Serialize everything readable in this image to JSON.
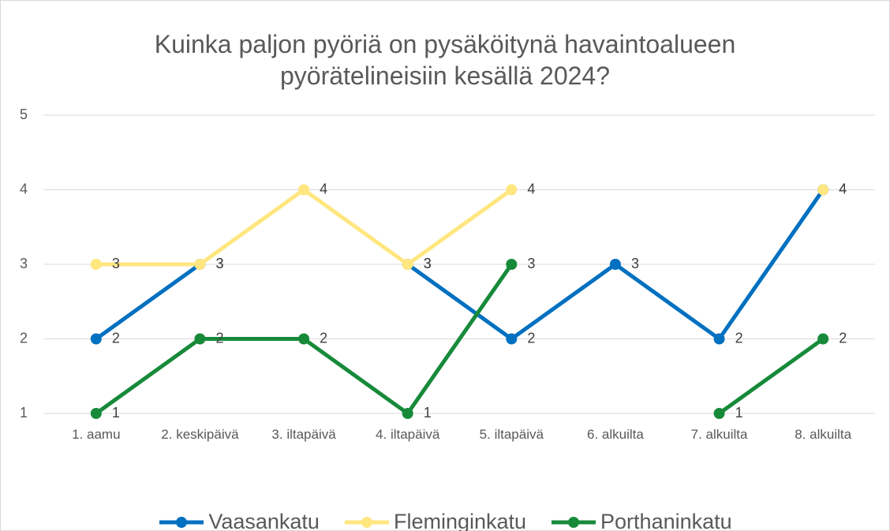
{
  "chart_data": {
    "type": "line",
    "title": "Kuinka paljon pyöriä on pysäköitynä havaintoalueen pyörätelineisiin kesällä 2024?",
    "categories": [
      "1. aamu",
      "2. keskipäivä",
      "3. iltapäivä",
      "4. iltapäivä",
      "5. iltapäivä",
      "6. alkuilta",
      "7. alkuilta",
      "8. alkuilta"
    ],
    "series": [
      {
        "name": "Vaasankatu",
        "color": "#0070c0",
        "values": [
          2,
          3,
          null,
          3,
          2,
          3,
          2,
          4
        ]
      },
      {
        "name": "Fleminginkatu",
        "color": "#ffe67f",
        "values": [
          3,
          3,
          4,
          3,
          4,
          null,
          null,
          4
        ]
      },
      {
        "name": "Porthaninkatu",
        "color": "#178a3a",
        "values": [
          1,
          2,
          2,
          1,
          3,
          null,
          1,
          2
        ]
      }
    ],
    "ylim": [
      1,
      5
    ],
    "yticks": [
      1,
      2,
      3,
      4,
      5
    ],
    "grid": true,
    "legend": "bottom",
    "data_labels": true
  }
}
